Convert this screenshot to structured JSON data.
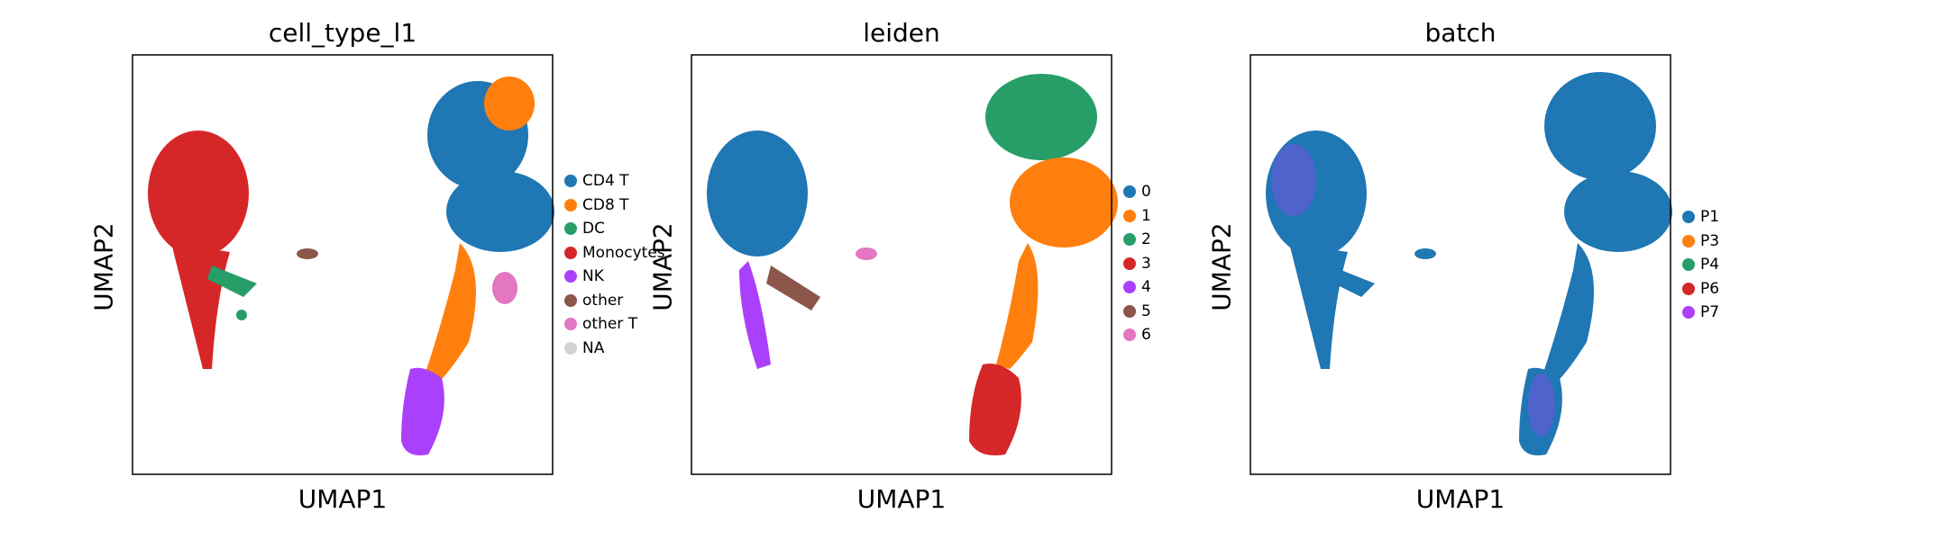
{
  "chart_data": [
    {
      "type": "scatter",
      "title": "cell_type_l1",
      "xlabel": "UMAP1",
      "ylabel": "UMAP2",
      "legend_placement": "right",
      "categories": [
        "CD4 T",
        "CD8 T",
        "DC",
        "Monocytes",
        "NK",
        "other",
        "other T",
        "NA"
      ],
      "colors": [
        "#1f77b4",
        "#ff7f0e",
        "#279e68",
        "#d62728",
        "#aa40fc",
        "#8c564b",
        "#e377c2",
        "#d3d3d3"
      ]
    },
    {
      "type": "scatter",
      "title": "leiden",
      "xlabel": "UMAP1",
      "ylabel": "UMAP2",
      "legend_placement": "right",
      "categories": [
        "0",
        "1",
        "2",
        "3",
        "4",
        "5",
        "6"
      ],
      "colors": [
        "#1f77b4",
        "#ff7f0e",
        "#279e68",
        "#d62728",
        "#aa40fc",
        "#8c564b",
        "#e377c2"
      ]
    },
    {
      "type": "scatter",
      "title": "batch",
      "xlabel": "UMAP1",
      "ylabel": "UMAP2",
      "legend_placement": "right",
      "categories": [
        "P1",
        "P3",
        "P4",
        "P6",
        "P7"
      ],
      "colors": [
        "#1f77b4",
        "#ff7f0e",
        "#279e68",
        "#d62728",
        "#aa40fc"
      ]
    }
  ]
}
